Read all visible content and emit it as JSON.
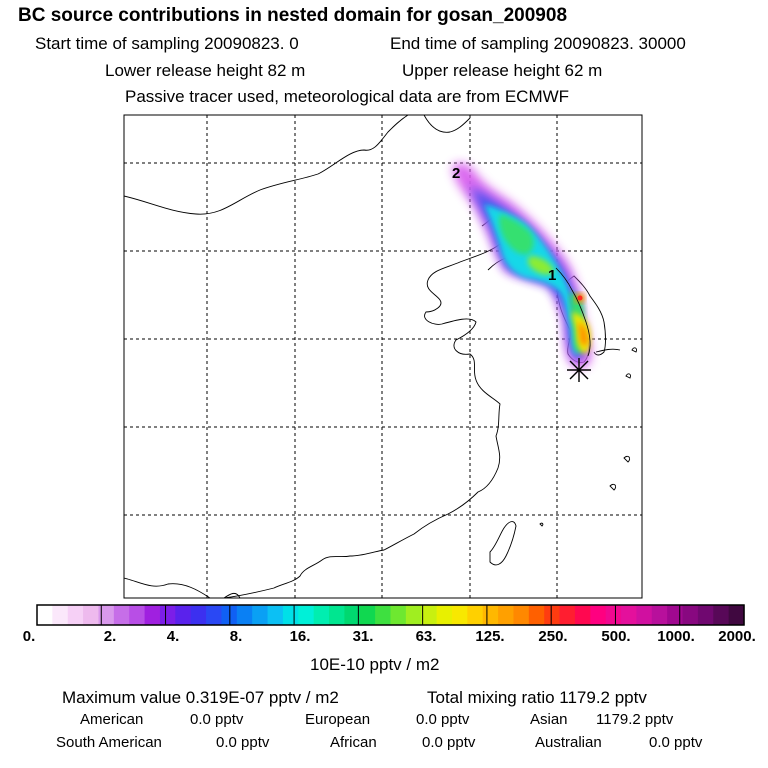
{
  "header": {
    "title": "BC  source contributions in nested domain for gosan_200908",
    "line1_start": "Start time of sampling 20090823.     0",
    "line1_end": "End time of sampling 20090823. 30000",
    "line2_lower": "Lower release height   82 m",
    "line2_upper": "Upper release height   62 m",
    "line3": "Passive tracer used, meteorological data are from ECMWF"
  },
  "map": {
    "labels": [
      "2",
      "1"
    ],
    "receptor_marker": "asterisk-icon"
  },
  "colorbar": {
    "unit": "10E-10 pptv / m2",
    "ticks": [
      "0.",
      "2.",
      "4.",
      "8.",
      "16.",
      "31.",
      "63.",
      "125.",
      "250.",
      "500.",
      "1000.",
      "2000."
    ],
    "colors": [
      "#ffffff",
      "#fbe8fb",
      "#f6d0f6",
      "#eebaee",
      "#d999ec",
      "#c66ee8",
      "#b84ee6",
      "#a020e0",
      "#7c1ee8",
      "#5a22ec",
      "#3c30f0",
      "#2a48f4",
      "#1060f4",
      "#0a80f4",
      "#0aa0f4",
      "#0cc0f4",
      "#00e0e8",
      "#00f0d8",
      "#00eeb0",
      "#00e690",
      "#00d870",
      "#10d850",
      "#3ee040",
      "#6ee830",
      "#a0ee20",
      "#c8f010",
      "#e8f000",
      "#f8e800",
      "#ffd000",
      "#ffb800",
      "#ffa000",
      "#ff8800",
      "#ff6000",
      "#ff3c10",
      "#ff1e30",
      "#ff0850",
      "#ff0080",
      "#f00890",
      "#e4109c",
      "#d010a0",
      "#b8109c",
      "#a00890",
      "#880880",
      "#700870",
      "#580858",
      "#400840"
    ]
  },
  "stats": {
    "max_label": "Maximum value  0.319E-07 pptv / m2",
    "total_label": "Total mixing ratio      1179.2 pptv",
    "row1": [
      {
        "name": "American",
        "value": "0.0 pptv"
      },
      {
        "name": "European",
        "value": "0.0 pptv"
      },
      {
        "name": "Asian",
        "value": "1179.2 pptv"
      }
    ],
    "row2": [
      {
        "name": "South American",
        "value": "0.0 pptv"
      },
      {
        "name": "African",
        "value": "0.0 pptv"
      },
      {
        "name": "Australian",
        "value": "0.0 pptv"
      }
    ]
  }
}
